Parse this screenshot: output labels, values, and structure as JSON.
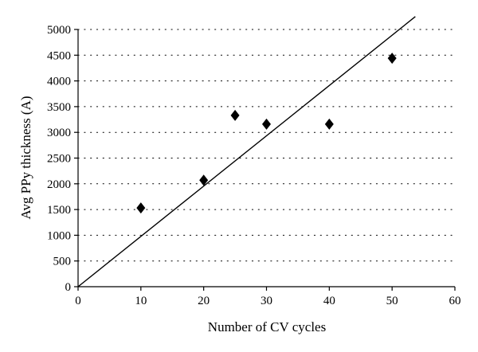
{
  "chart_data": {
    "type": "scatter",
    "title": "",
    "xlabel": "Number of CV cycles",
    "ylabel": "Avg PPy thickness (A)",
    "xlim": [
      0,
      60
    ],
    "ylim": [
      0,
      5000
    ],
    "xticks": [
      0,
      10,
      20,
      30,
      40,
      50,
      60
    ],
    "yticks": [
      0,
      500,
      1000,
      1500,
      2000,
      2500,
      3000,
      3500,
      4000,
      4500,
      5000
    ],
    "grid": "horizontal dotted",
    "series": [
      {
        "marker": "diamond",
        "color": "#000000",
        "points": [
          {
            "x": 10,
            "y": 1530
          },
          {
            "x": 20,
            "y": 2070
          },
          {
            "x": 25,
            "y": 3330
          },
          {
            "x": 30,
            "y": 3160
          },
          {
            "x": 40,
            "y": 3160
          },
          {
            "x": 50,
            "y": 4440
          }
        ]
      }
    ],
    "trendline": {
      "type": "linear",
      "color": "#000000",
      "from": {
        "x": 0,
        "y": 0
      },
      "to": {
        "x": 53.7,
        "y": 5250
      }
    }
  }
}
